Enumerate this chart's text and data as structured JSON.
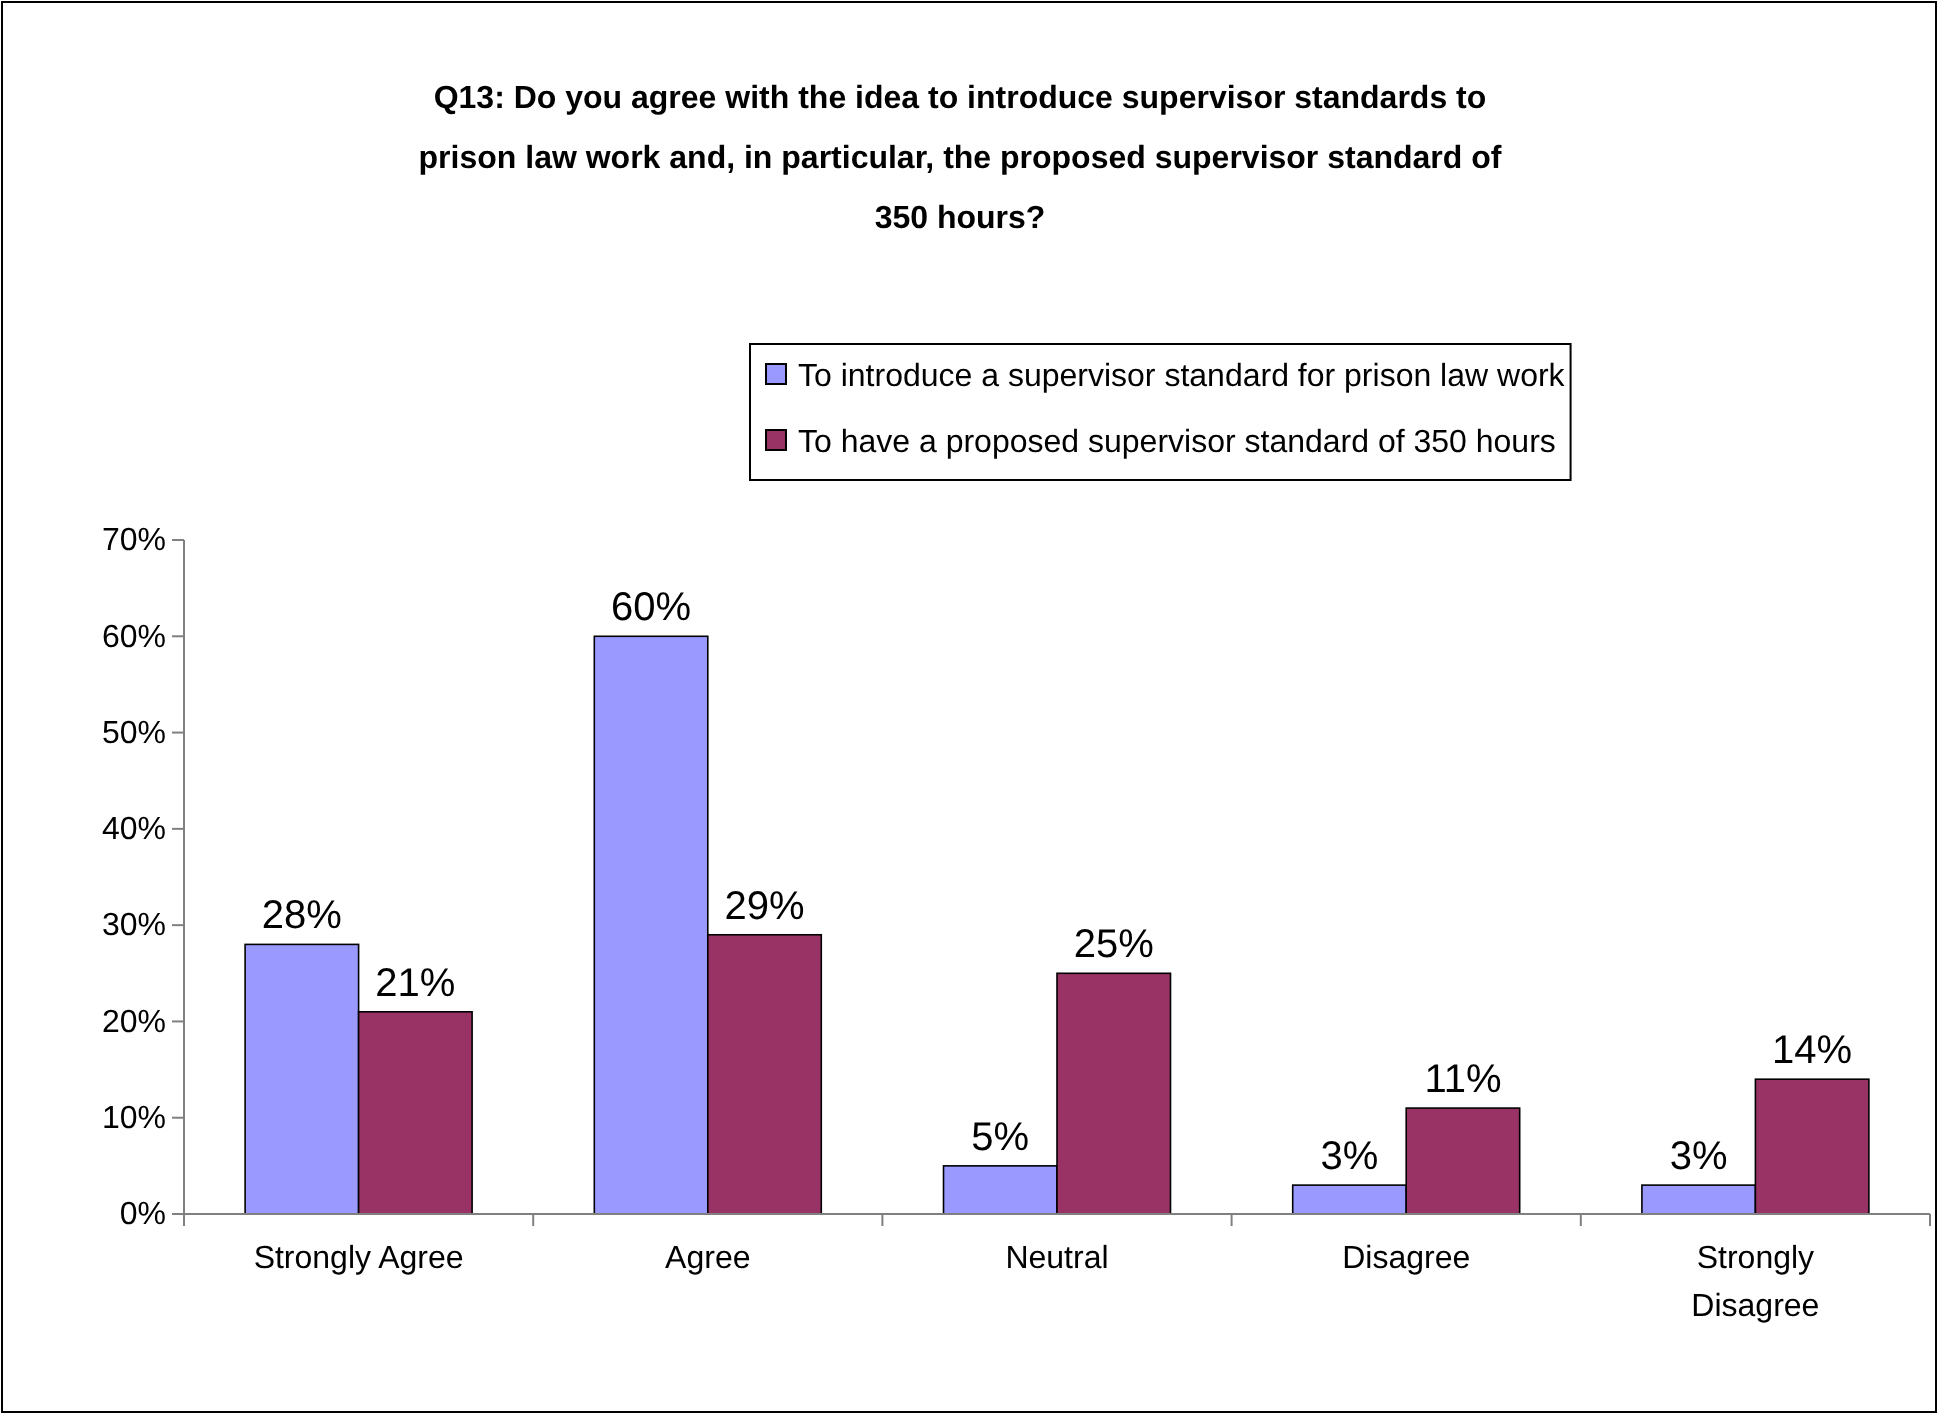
{
  "chart_data": {
    "type": "bar",
    "title": "Q13: Do you agree with the idea to introduce supervisor standards to prison law work and, in particular, the proposed supervisor standard of 350 hours?",
    "categories": [
      "Strongly Agree",
      "Agree",
      "Neutral",
      "Disagree",
      "Strongly Disagree"
    ],
    "series": [
      {
        "name": "To introduce a supervisor standard for prison law work",
        "color": "#9999ff",
        "values": [
          28,
          60,
          5,
          3,
          3
        ],
        "value_labels": [
          "28%",
          "60%",
          "5%",
          "3%",
          "3%"
        ]
      },
      {
        "name": "To have a proposed supervisor standard of 350 hours",
        "color": "#993366",
        "values": [
          21,
          29,
          25,
          11,
          14
        ],
        "value_labels": [
          "21%",
          "29%",
          "25%",
          "11%",
          "14%"
        ]
      }
    ],
    "ylim": [
      0,
      70
    ],
    "yticks": [
      {
        "value": 0,
        "label": "0%"
      },
      {
        "value": 10,
        "label": "10%"
      },
      {
        "value": 20,
        "label": "20%"
      },
      {
        "value": 30,
        "label": "30%"
      },
      {
        "value": 40,
        "label": "40%"
      },
      {
        "value": 50,
        "label": "50%"
      },
      {
        "value": 60,
        "label": "60%"
      },
      {
        "value": 70,
        "label": "70%"
      }
    ],
    "legend": "top",
    "grid": false
  }
}
